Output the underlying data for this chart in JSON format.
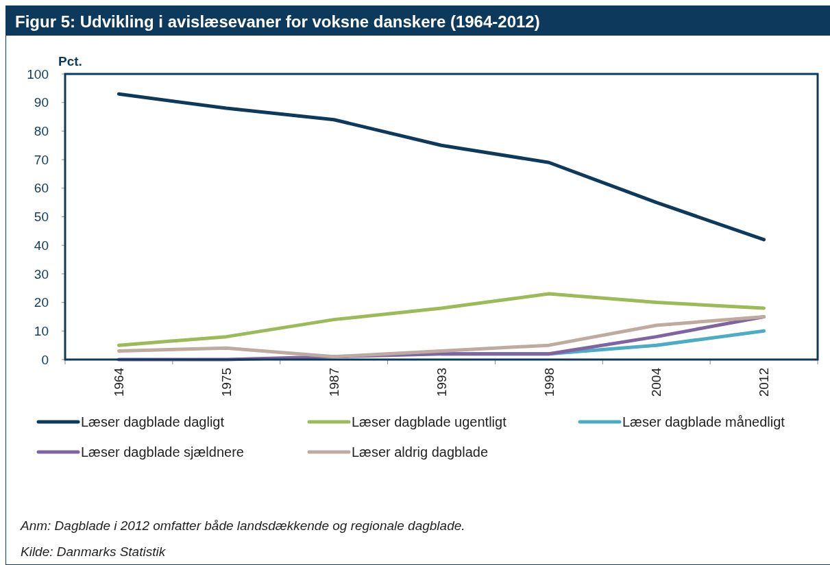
{
  "chart_data": {
    "type": "line",
    "title": "Figur 5: Udvikling i avislæsevaner for voksne danskere (1964-2012)",
    "ylabel": "Pct.",
    "categories": [
      "1964",
      "1975",
      "1987",
      "1993",
      "1998",
      "2004",
      "2012"
    ],
    "series": [
      {
        "name": "Læser dagblade dagligt",
        "color": "#0d3a5c",
        "values": [
          93,
          88,
          84,
          75,
          69,
          55,
          42
        ]
      },
      {
        "name": "Læser dagblade ugentligt",
        "color": "#9bbb59",
        "values": [
          5,
          8,
          14,
          18,
          23,
          20,
          18
        ]
      },
      {
        "name": "Læser dagblade månedligt",
        "color": "#4bacc6",
        "values": [
          null,
          null,
          null,
          2,
          2,
          5,
          10
        ]
      },
      {
        "name": "Læser dagblade sjældnere",
        "color": "#8064a2",
        "values": [
          0,
          0,
          1,
          2,
          2,
          8,
          15
        ]
      },
      {
        "name": "Læser aldrig dagblade",
        "color": "#bfaaa0",
        "values": [
          3,
          4,
          1,
          3,
          5,
          12,
          15
        ]
      }
    ],
    "ylim": [
      0,
      100
    ],
    "yticks": [
      0,
      10,
      20,
      30,
      40,
      50,
      60,
      70,
      80,
      90,
      100
    ],
    "grid": false,
    "legend": "bottom",
    "marker": "none",
    "line_style": "solid",
    "annotations": [
      "Anm: Dagblade i 2012 omfatter både landsdækkende og regionale dagblade.",
      "Kilde: Danmarks Statistik"
    ]
  }
}
